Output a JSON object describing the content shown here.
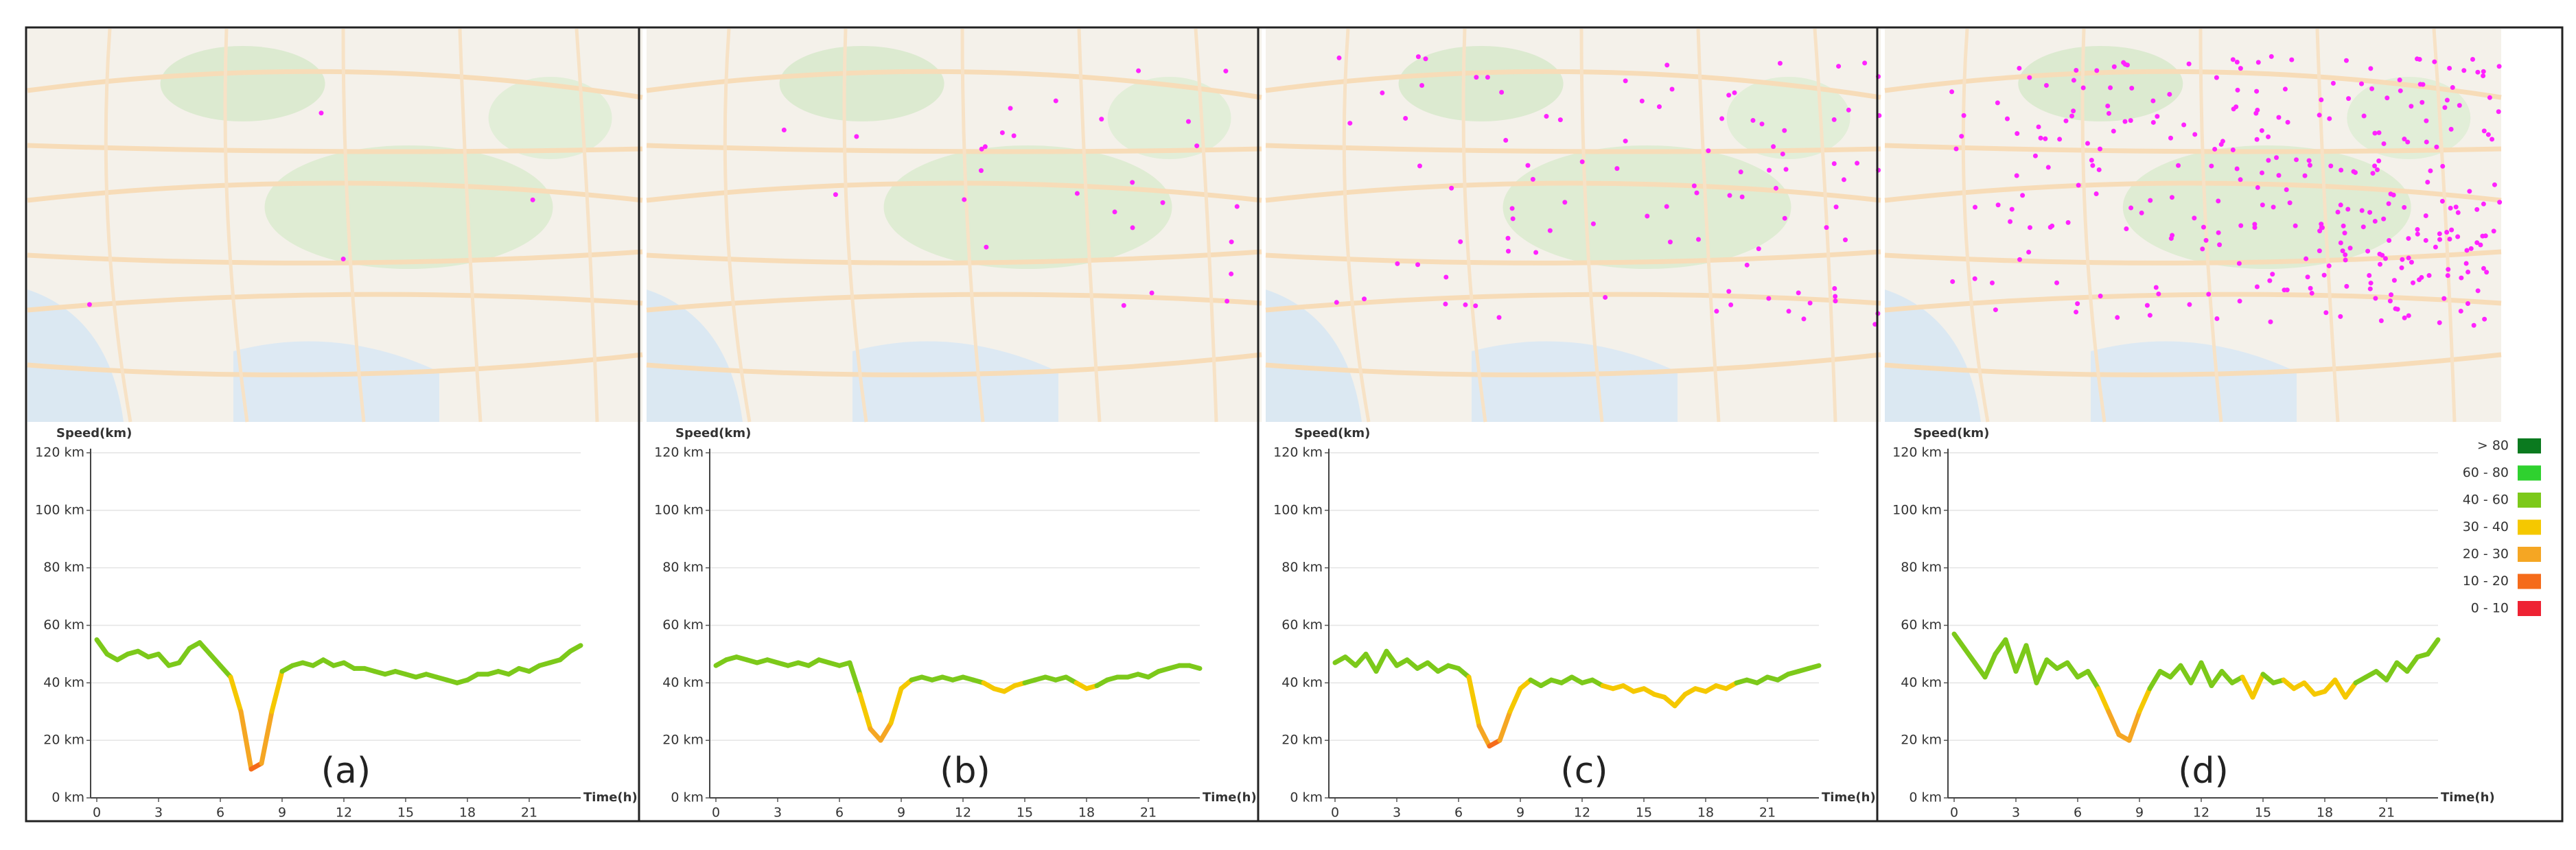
{
  "chart_data": [
    {
      "type": "line",
      "caption": "(a)",
      "y_label": "Speed(km)",
      "x_label": "Time(h)",
      "x": [
        0,
        0.5,
        1,
        1.5,
        2,
        2.5,
        3,
        3.5,
        4,
        4.5,
        5,
        5.5,
        6,
        6.5,
        7,
        7.5,
        8,
        8.5,
        9,
        9.5,
        10,
        10.5,
        11,
        11.5,
        12,
        12.5,
        13,
        13.5,
        14,
        14.5,
        15,
        15.5,
        16,
        16.5,
        17,
        17.5,
        18,
        18.5,
        19,
        19.5,
        20,
        20.5,
        21,
        21.5,
        22,
        22.5,
        23,
        23.5
      ],
      "values": [
        55,
        50,
        48,
        50,
        51,
        49,
        50,
        46,
        47,
        52,
        54,
        50,
        46,
        42,
        30,
        10,
        12,
        30,
        44,
        46,
        47,
        46,
        48,
        46,
        47,
        45,
        45,
        44,
        43,
        44,
        43,
        42,
        43,
        42,
        41,
        40,
        41,
        43,
        43,
        44,
        43,
        45,
        44,
        46,
        47,
        48,
        51,
        53
      ],
      "xlim": [
        -0.3,
        23.5
      ],
      "ylim": [
        0,
        120
      ],
      "xticks": [
        0,
        3,
        6,
        9,
        12,
        15,
        18,
        21
      ],
      "yticks": [
        {
          "value": 0,
          "label": "0 km"
        },
        {
          "value": 20,
          "label": "20 km"
        },
        {
          "value": 40,
          "label": "40 km"
        },
        {
          "value": 60,
          "label": "60 km"
        },
        {
          "value": 80,
          "label": "80 km"
        },
        {
          "value": 100,
          "label": "100 km"
        },
        {
          "value": 120,
          "label": "120 km"
        }
      ],
      "grid": true
    },
    {
      "type": "line",
      "caption": "(b)",
      "y_label": "Speed(km)",
      "x_label": "Time(h)",
      "x": [
        0,
        0.5,
        1,
        1.5,
        2,
        2.5,
        3,
        3.5,
        4,
        4.5,
        5,
        5.5,
        6,
        6.5,
        7,
        7.5,
        8,
        8.5,
        9,
        9.5,
        10,
        10.5,
        11,
        11.5,
        12,
        12.5,
        13,
        13.5,
        14,
        14.5,
        15,
        15.5,
        16,
        16.5,
        17,
        17.5,
        18,
        18.5,
        19,
        19.5,
        20,
        20.5,
        21,
        21.5,
        22,
        22.5,
        23,
        23.5
      ],
      "values": [
        46,
        48,
        49,
        48,
        47,
        48,
        47,
        46,
        47,
        46,
        48,
        47,
        46,
        47,
        36,
        24,
        20,
        26,
        38,
        41,
        42,
        41,
        42,
        41,
        42,
        41,
        40,
        38,
        37,
        39,
        40,
        41,
        42,
        41,
        42,
        40,
        38,
        39,
        41,
        42,
        42,
        43,
        42,
        44,
        45,
        46,
        46,
        45
      ],
      "xlim": [
        -0.3,
        23.5
      ],
      "ylim": [
        0,
        120
      ],
      "xticks": [
        0,
        3,
        6,
        9,
        12,
        15,
        18,
        21
      ],
      "yticks": [
        {
          "value": 0,
          "label": "0 km"
        },
        {
          "value": 20,
          "label": "20 km"
        },
        {
          "value": 40,
          "label": "40 km"
        },
        {
          "value": 60,
          "label": "60 km"
        },
        {
          "value": 80,
          "label": "80 km"
        },
        {
          "value": 100,
          "label": "100 km"
        },
        {
          "value": 120,
          "label": "120 km"
        }
      ],
      "grid": true
    },
    {
      "type": "line",
      "caption": "(c)",
      "y_label": "Speed(km)",
      "x_label": "Time(h)",
      "x": [
        0,
        0.5,
        1,
        1.5,
        2,
        2.5,
        3,
        3.5,
        4,
        4.5,
        5,
        5.5,
        6,
        6.5,
        7,
        7.5,
        8,
        8.5,
        9,
        9.5,
        10,
        10.5,
        11,
        11.5,
        12,
        12.5,
        13,
        13.5,
        14,
        14.5,
        15,
        15.5,
        16,
        16.5,
        17,
        17.5,
        18,
        18.5,
        19,
        19.5,
        20,
        20.5,
        21,
        21.5,
        22,
        22.5,
        23,
        23.5
      ],
      "values": [
        47,
        49,
        46,
        50,
        44,
        51,
        46,
        48,
        45,
        47,
        44,
        46,
        45,
        42,
        25,
        18,
        20,
        30,
        38,
        41,
        39,
        41,
        40,
        42,
        40,
        41,
        39,
        38,
        39,
        37,
        38,
        36,
        35,
        32,
        36,
        38,
        37,
        39,
        38,
        40,
        41,
        40,
        42,
        41,
        43,
        44,
        45,
        46
      ],
      "xlim": [
        -0.3,
        23.5
      ],
      "ylim": [
        0,
        120
      ],
      "xticks": [
        0,
        3,
        6,
        9,
        12,
        15,
        18,
        21
      ],
      "yticks": [
        {
          "value": 0,
          "label": "0 km"
        },
        {
          "value": 20,
          "label": "20 km"
        },
        {
          "value": 40,
          "label": "40 km"
        },
        {
          "value": 60,
          "label": "60 km"
        },
        {
          "value": 80,
          "label": "80 km"
        },
        {
          "value": 100,
          "label": "100 km"
        },
        {
          "value": 120,
          "label": "120 km"
        }
      ],
      "grid": true
    },
    {
      "type": "line",
      "caption": "(d)",
      "y_label": "Speed(km)",
      "x_label": "Time(h)",
      "x": [
        0,
        0.5,
        1,
        1.5,
        2,
        2.5,
        3,
        3.5,
        4,
        4.5,
        5,
        5.5,
        6,
        6.5,
        7,
        7.5,
        8,
        8.5,
        9,
        9.5,
        10,
        10.5,
        11,
        11.5,
        12,
        12.5,
        13,
        13.5,
        14,
        14.5,
        15,
        15.5,
        16,
        16.5,
        17,
        17.5,
        18,
        18.5,
        19,
        19.5,
        20,
        20.5,
        21,
        21.5,
        22,
        22.5,
        23,
        23.5
      ],
      "values": [
        57,
        52,
        47,
        42,
        50,
        55,
        44,
        53,
        40,
        48,
        45,
        47,
        42,
        44,
        38,
        30,
        22,
        20,
        30,
        38,
        44,
        42,
        46,
        40,
        47,
        39,
        44,
        40,
        42,
        35,
        43,
        40,
        41,
        38,
        40,
        36,
        37,
        41,
        35,
        40,
        42,
        44,
        41,
        47,
        44,
        49,
        50,
        55
      ],
      "xlim": [
        -0.3,
        23.5
      ],
      "ylim": [
        0,
        120
      ],
      "xticks": [
        0,
        3,
        6,
        9,
        12,
        15,
        18,
        21
      ],
      "yticks": [
        {
          "value": 0,
          "label": "0 km"
        },
        {
          "value": 20,
          "label": "20 km"
        },
        {
          "value": 40,
          "label": "40 km"
        },
        {
          "value": 60,
          "label": "60 km"
        },
        {
          "value": 80,
          "label": "80 km"
        },
        {
          "value": 100,
          "label": "100 km"
        },
        {
          "value": 120,
          "label": "120 km"
        }
      ],
      "grid": true
    }
  ],
  "color_scale": [
    {
      "label": "> 80",
      "range": [
        80,
        null
      ],
      "color": "#0b7a1f"
    },
    {
      "label": "60 - 80",
      "range": [
        60,
        80
      ],
      "color": "#2fd12f"
    },
    {
      "label": "40 - 60",
      "range": [
        40,
        60
      ],
      "color": "#7cc91a"
    },
    {
      "label": "30 - 40",
      "range": [
        30,
        40
      ],
      "color": "#f5c800"
    },
    {
      "label": "20 - 30",
      "range": [
        20,
        30
      ],
      "color": "#f5a623"
    },
    {
      "label": "10 - 20",
      "range": [
        10,
        20
      ],
      "color": "#f56b1a"
    },
    {
      "label": "0 - 10",
      "range": [
        0,
        10
      ],
      "color": "#ee2233"
    }
  ]
}
